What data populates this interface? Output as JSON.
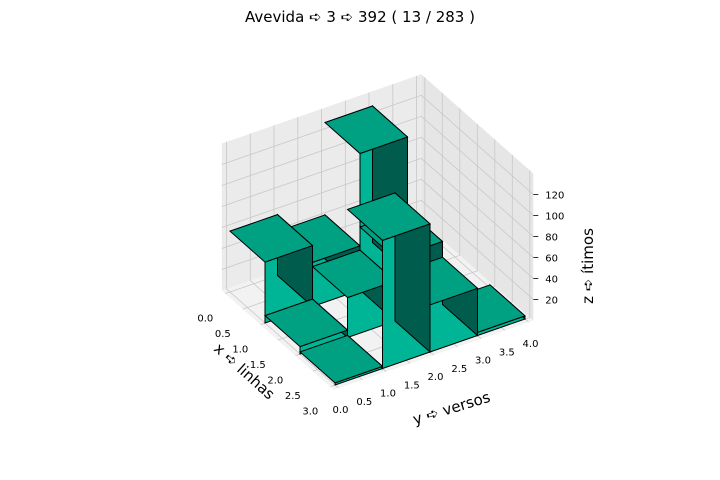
{
  "chart_data": {
    "type": "bar3d",
    "title": "Avevida ➪ 3 ➪ 392 ( 13 / 283 )",
    "xlabel": "x ➪ linhas",
    "ylabel": "y ➪ versos",
    "zlabel": "z ➪ ítimos",
    "x_ticks": [
      "0.0",
      "0.5",
      "1.0",
      "1.5",
      "2.0",
      "2.5",
      "3.0"
    ],
    "y_ticks": [
      "0.0",
      "0.5",
      "1.0",
      "1.5",
      "2.0",
      "2.5",
      "3.0",
      "3.5",
      "4.0"
    ],
    "z_ticks": [
      "20",
      "40",
      "60",
      "80",
      "100",
      "120"
    ],
    "xlim": [
      0,
      3
    ],
    "ylim": [
      0,
      4
    ],
    "zlim": [
      0,
      125
    ],
    "bar_color": "#00a88a",
    "grid": true,
    "bars": [
      {
        "x": 0,
        "y": 0,
        "z": 58
      },
      {
        "x": 0,
        "y": 1,
        "z": 42
      },
      {
        "x": 0,
        "y": 2,
        "z": 130
      },
      {
        "x": 1,
        "y": 0,
        "z": 7
      },
      {
        "x": 1,
        "y": 1,
        "z": 38
      },
      {
        "x": 1,
        "y": 2,
        "z": 60
      },
      {
        "x": 2,
        "y": 0,
        "z": 2
      },
      {
        "x": 2,
        "y": 1,
        "z": 122
      },
      {
        "x": 2,
        "y": 2,
        "z": 45
      },
      {
        "x": 2,
        "y": 3,
        "z": 3
      }
    ]
  }
}
